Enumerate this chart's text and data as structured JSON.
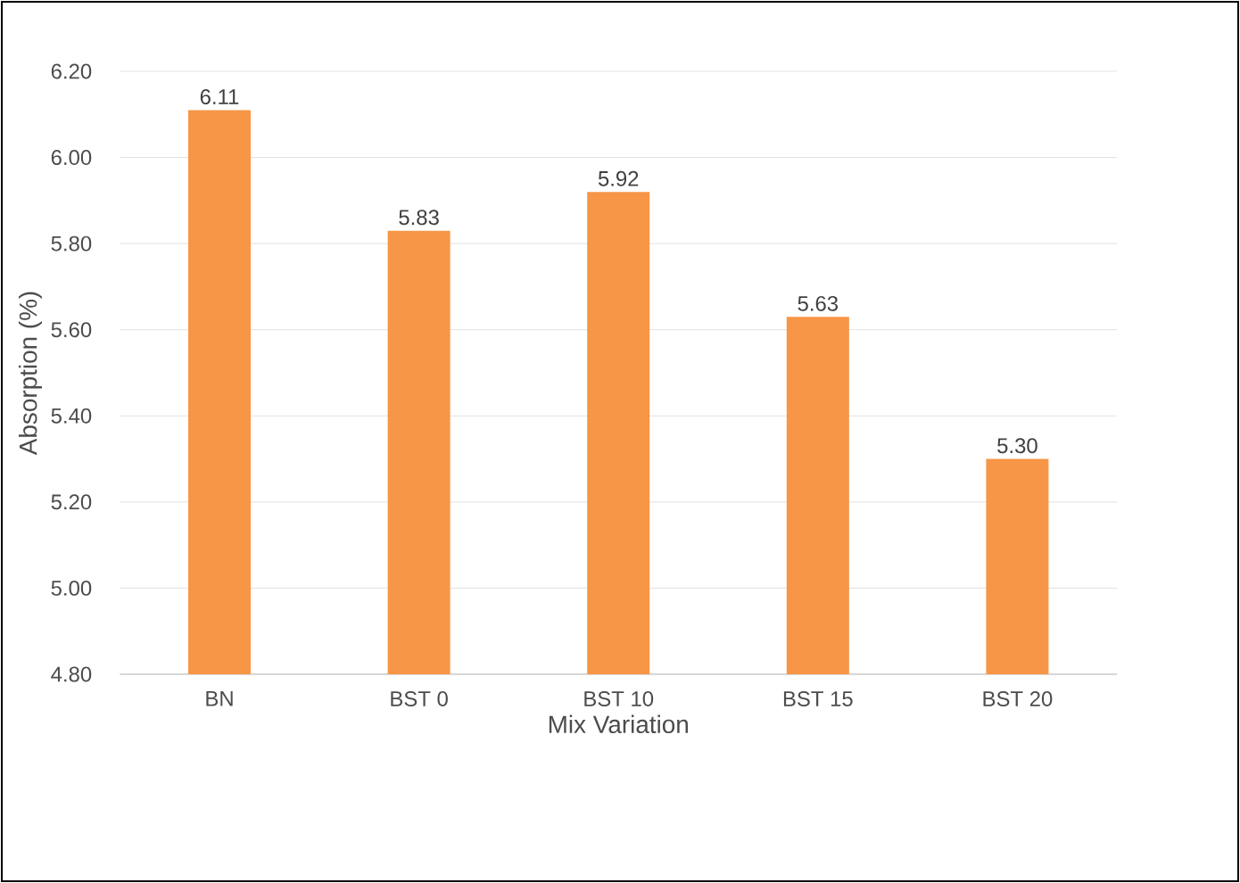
{
  "chart_data": {
    "type": "bar",
    "xlabel": "Mix Variation",
    "ylabel": "Absorption (%)",
    "categories": [
      "BN",
      "BST 0",
      "BST 10",
      "BST 15",
      "BST 20"
    ],
    "values": [
      6.11,
      5.83,
      5.92,
      5.63,
      5.3
    ],
    "value_labels": [
      "6.11",
      "5.83",
      "5.92",
      "5.63",
      "5.30"
    ],
    "color": "#f79646",
    "ylim": [
      4.8,
      6.2
    ],
    "yticks": [
      {
        "value": 4.8,
        "label": "4.80"
      },
      {
        "value": 5.0,
        "label": "5.00"
      },
      {
        "value": 5.2,
        "label": "5.20"
      },
      {
        "value": 5.4,
        "label": "5.40"
      },
      {
        "value": 5.6,
        "label": "5.60"
      },
      {
        "value": 5.8,
        "label": "5.80"
      },
      {
        "value": 6.0,
        "label": "6.00"
      },
      {
        "value": 6.2,
        "label": "6.20"
      }
    ],
    "grid": "y"
  }
}
